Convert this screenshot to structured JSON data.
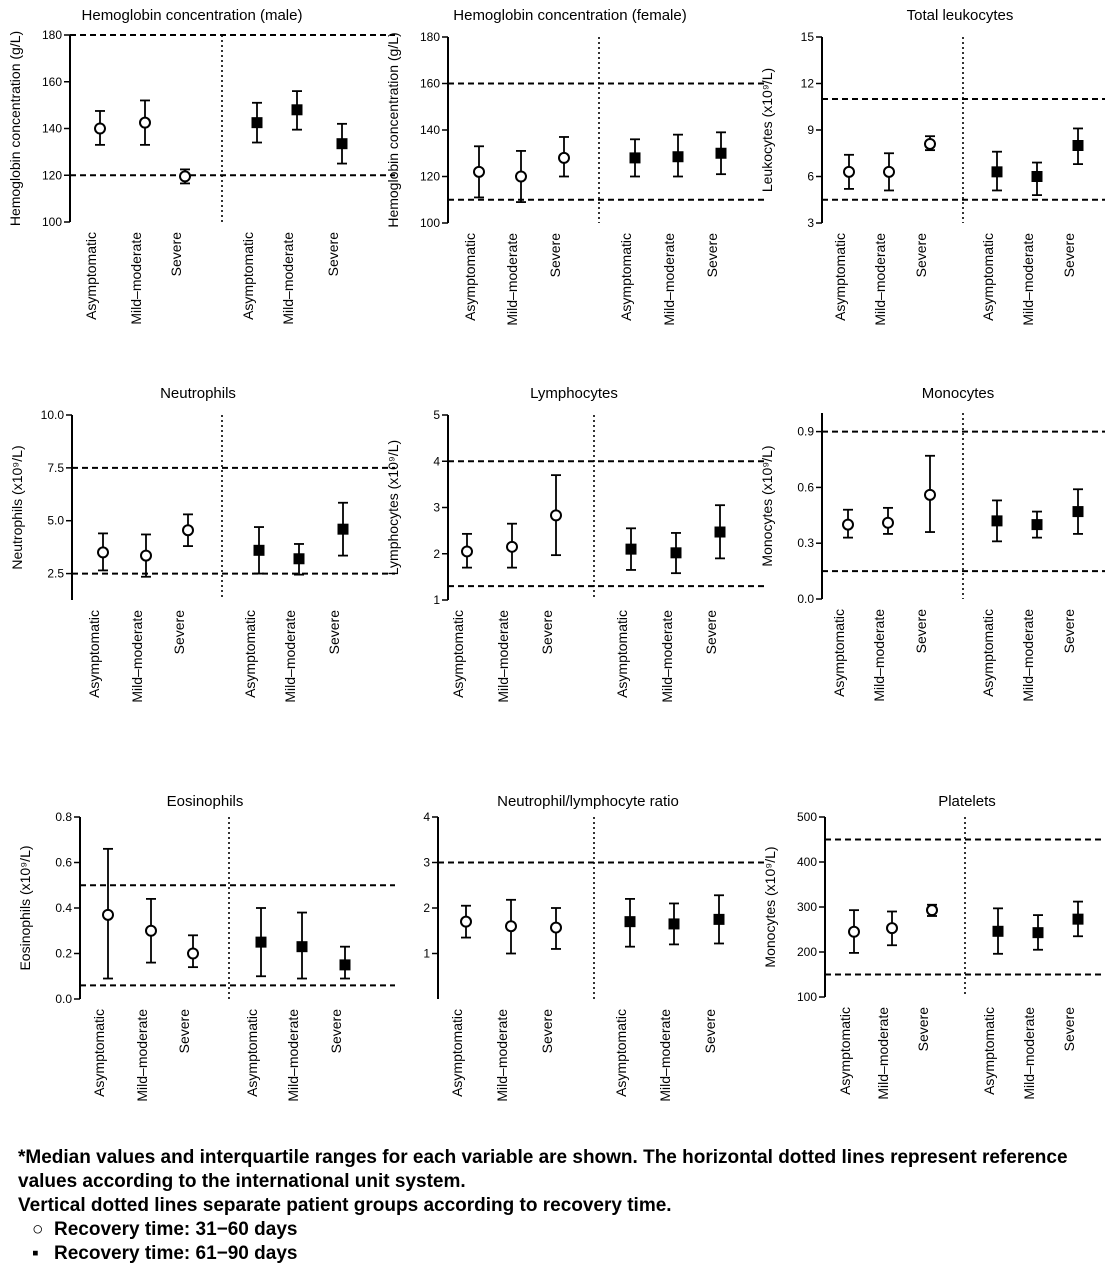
{
  "chart_data": [
    {
      "type": "scatter",
      "title": "Hemoglobin concentration (male)",
      "ylabel": "Hemoglobin concentration (g/L)",
      "ylim": [
        100,
        180
      ],
      "yticks": [
        "100",
        "120",
        "140",
        "160",
        "180"
      ],
      "reference_lines": [
        120,
        180
      ],
      "categories": [
        "Asymptomatic",
        "Mild–moderate",
        "Severe"
      ],
      "series": [
        {
          "name": "Recovery time: 31−60 days",
          "median": [
            140,
            142.5,
            119.5
          ],
          "q1": [
            133,
            133,
            116.5
          ],
          "q3": [
            147.5,
            152,
            122.5
          ]
        },
        {
          "name": "Recovery time: 61−90 days",
          "median": [
            142.5,
            148,
            133.5
          ],
          "q1": [
            134,
            139.5,
            125
          ],
          "q3": [
            151,
            156,
            142
          ]
        }
      ]
    },
    {
      "type": "scatter",
      "title": "Hemoglobin concentration (female)",
      "ylabel": "Hemoglobin concentration (g/L)",
      "ylim": [
        100,
        180
      ],
      "yticks": [
        "100",
        "120",
        "140",
        "160",
        "180"
      ],
      "reference_lines": [
        110,
        160
      ],
      "categories": [
        "Asymptomatic",
        "Mild–moderate",
        "Severe"
      ],
      "series": [
        {
          "name": "Recovery time: 31−60 days",
          "median": [
            122,
            120,
            128
          ],
          "q1": [
            111,
            109,
            120
          ],
          "q3": [
            133,
            131,
            137
          ]
        },
        {
          "name": "Recovery time: 61−90 days",
          "median": [
            128,
            128.5,
            130
          ],
          "q1": [
            120,
            120,
            121
          ],
          "q3": [
            136,
            138,
            139
          ]
        }
      ]
    },
    {
      "type": "scatter",
      "title": "Total leukocytes",
      "ylabel": "Leukocytes (x10⁹/L)",
      "ylim": [
        3,
        15
      ],
      "yticks": [
        "3",
        "6",
        "9",
        "12",
        "15"
      ],
      "reference_lines": [
        4.5,
        11
      ],
      "categories": [
        "Asymptomatic",
        "Mild–moderate",
        "Severe"
      ],
      "series": [
        {
          "name": "Recovery time: 31−60 days",
          "median": [
            6.3,
            6.3,
            8.1
          ],
          "q1": [
            5.2,
            5.1,
            7.7
          ],
          "q3": [
            7.4,
            7.5,
            8.6
          ]
        },
        {
          "name": "Recovery time: 61−90 days",
          "median": [
            6.3,
            6.0,
            8.0
          ],
          "q1": [
            5.1,
            4.8,
            6.8
          ],
          "q3": [
            7.6,
            6.9,
            9.1
          ]
        }
      ]
    },
    {
      "type": "scatter",
      "title": "Neutrophils",
      "ylabel": "Neutrophils (x10⁹/L)",
      "ylim": [
        1.25,
        10
      ],
      "yticks": [
        "2.5",
        "5.0",
        "7.5",
        "10.0"
      ],
      "reference_lines": [
        2.5,
        7.5
      ],
      "categories": [
        "Asymptomatic",
        "Mild–moderate",
        "Severe"
      ],
      "series": [
        {
          "name": "Recovery time: 31−60 days",
          "median": [
            3.5,
            3.35,
            4.55
          ],
          "q1": [
            2.65,
            2.35,
            3.8
          ],
          "q3": [
            4.4,
            4.35,
            5.3
          ]
        },
        {
          "name": "Recovery time: 61−90 days",
          "median": [
            3.6,
            3.2,
            4.6
          ],
          "q1": [
            2.5,
            2.45,
            3.35
          ],
          "q3": [
            4.7,
            3.9,
            5.85
          ]
        }
      ]
    },
    {
      "type": "scatter",
      "title": "Lymphocytes",
      "ylabel": "Lymphocytes (x10⁹/L)",
      "ylim": [
        1,
        5
      ],
      "yticks": [
        "1",
        "2",
        "3",
        "4",
        "5"
      ],
      "reference_lines": [
        1.3,
        4
      ],
      "categories": [
        "Asymptomatic",
        "Mild–moderate",
        "Severe"
      ],
      "series": [
        {
          "name": "Recovery time: 31−60 days",
          "median": [
            2.05,
            2.15,
            2.83
          ],
          "q1": [
            1.7,
            1.7,
            1.97
          ],
          "q3": [
            2.43,
            2.65,
            3.7
          ]
        },
        {
          "name": "Recovery time: 61−90 days",
          "median": [
            2.1,
            2.02,
            2.47
          ],
          "q1": [
            1.65,
            1.58,
            1.9
          ],
          "q3": [
            2.55,
            2.45,
            3.05
          ]
        }
      ]
    },
    {
      "type": "scatter",
      "title": "Monocytes",
      "ylabel": "Monocytes (x10⁹/L)",
      "ylim": [
        0,
        1
      ],
      "yticks": [
        "0.0",
        "0.3",
        "0.6",
        "0.9"
      ],
      "reference_lines": [
        0.15,
        0.9
      ],
      "categories": [
        "Asymptomatic",
        "Mild–moderate",
        "Severe"
      ],
      "series": [
        {
          "name": "Recovery time: 31−60 days",
          "median": [
            0.4,
            0.41,
            0.56
          ],
          "q1": [
            0.33,
            0.35,
            0.36
          ],
          "q3": [
            0.48,
            0.49,
            0.77
          ]
        },
        {
          "name": "Recovery time: 61−90 days",
          "median": [
            0.42,
            0.4,
            0.47
          ],
          "q1": [
            0.31,
            0.33,
            0.35
          ],
          "q3": [
            0.53,
            0.47,
            0.59
          ]
        }
      ]
    },
    {
      "type": "scatter",
      "title": "Eosinophils",
      "ylabel": "Eosinophils (x10⁹/L)",
      "ylim": [
        0,
        0.8
      ],
      "yticks": [
        "0.0",
        "0.2",
        "0.4",
        "0.6",
        "0.8"
      ],
      "reference_lines": [
        0.06,
        0.5
      ],
      "categories": [
        "Asymptomatic",
        "Mild–moderate",
        "Severe"
      ],
      "series": [
        {
          "name": "Recovery time: 31−60 days",
          "median": [
            0.37,
            0.3,
            0.2
          ],
          "q1": [
            0.09,
            0.16,
            0.14
          ],
          "q3": [
            0.66,
            0.44,
            0.28
          ]
        },
        {
          "name": "Recovery time: 61−90 days",
          "median": [
            0.25,
            0.23,
            0.15
          ],
          "q1": [
            0.1,
            0.09,
            0.09
          ],
          "q3": [
            0.4,
            0.38,
            0.23
          ]
        }
      ]
    },
    {
      "type": "scatter",
      "title": "Neutrophil/lymphocyte ratio",
      "ylabel": "",
      "ylim": [
        0,
        4
      ],
      "yticks": [
        "1",
        "2",
        "3",
        "4"
      ],
      "reference_lines": [
        3
      ],
      "categories": [
        "Asymptomatic",
        "Mild–moderate",
        "Severe"
      ],
      "series": [
        {
          "name": "Recovery time: 31−60 days",
          "median": [
            1.7,
            1.6,
            1.57
          ],
          "q1": [
            1.35,
            1.0,
            1.1
          ],
          "q3": [
            2.05,
            2.18,
            2.0
          ]
        },
        {
          "name": "Recovery time: 61−90 days",
          "median": [
            1.7,
            1.65,
            1.75
          ],
          "q1": [
            1.15,
            1.2,
            1.22
          ],
          "q3": [
            2.2,
            2.1,
            2.28
          ]
        }
      ]
    },
    {
      "type": "scatter",
      "title": "Platelets",
      "ylabel": "Monocytes (x10⁹/L)",
      "ylim": [
        100,
        500
      ],
      "yticks": [
        "100",
        "200",
        "300",
        "400",
        "500"
      ],
      "reference_lines": [
        150,
        450
      ],
      "categories": [
        "Asymptomatic",
        "Mild–moderate",
        "Severe"
      ],
      "series": [
        {
          "name": "Recovery time: 31−60 days",
          "median": [
            245,
            253,
            293
          ],
          "q1": [
            198,
            215,
            280
          ],
          "q3": [
            293,
            290,
            305
          ]
        },
        {
          "name": "Recovery time: 61−90 days",
          "median": [
            246,
            243,
            273
          ],
          "q1": [
            196,
            205,
            235
          ],
          "q3": [
            297,
            282,
            312
          ]
        }
      ]
    }
  ],
  "footnote": {
    "line1": "*Median values and interquartile ranges for each variable are shown. The horizontal dotted lines represent reference values according to the international unit system.",
    "line2": "Vertical dotted lines separate patient groups according to recovery time.",
    "legend": [
      {
        "symbol": "○",
        "label": "Recovery time: 31−60 days"
      },
      {
        "symbol": "▪",
        "label": "Recovery time: 61−90 days"
      }
    ]
  }
}
